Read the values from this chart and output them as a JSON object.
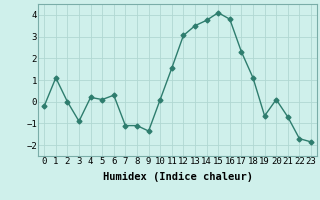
{
  "xlabel": "Humidex (Indice chaleur)",
  "x": [
    0,
    1,
    2,
    3,
    4,
    5,
    6,
    7,
    8,
    9,
    10,
    11,
    12,
    13,
    14,
    15,
    16,
    17,
    18,
    19,
    20,
    21,
    22,
    23
  ],
  "y": [
    -0.2,
    1.1,
    0.0,
    -0.9,
    0.2,
    0.1,
    0.3,
    -1.1,
    -1.1,
    -1.35,
    0.1,
    1.55,
    3.05,
    3.5,
    3.75,
    4.1,
    3.8,
    2.3,
    1.1,
    -0.65,
    0.1,
    -0.7,
    -1.7,
    -1.85
  ],
  "line_color": "#2e7d6e",
  "marker": "D",
  "markersize": 2.5,
  "linewidth": 1.0,
  "bg_color": "#cff0eb",
  "grid_color": "#b0d8d2",
  "ylim": [
    -2.5,
    4.5
  ],
  "yticks": [
    -2,
    -1,
    0,
    1,
    2,
    3,
    4
  ],
  "tick_fontsize": 6.5,
  "label_fontsize": 7.5
}
